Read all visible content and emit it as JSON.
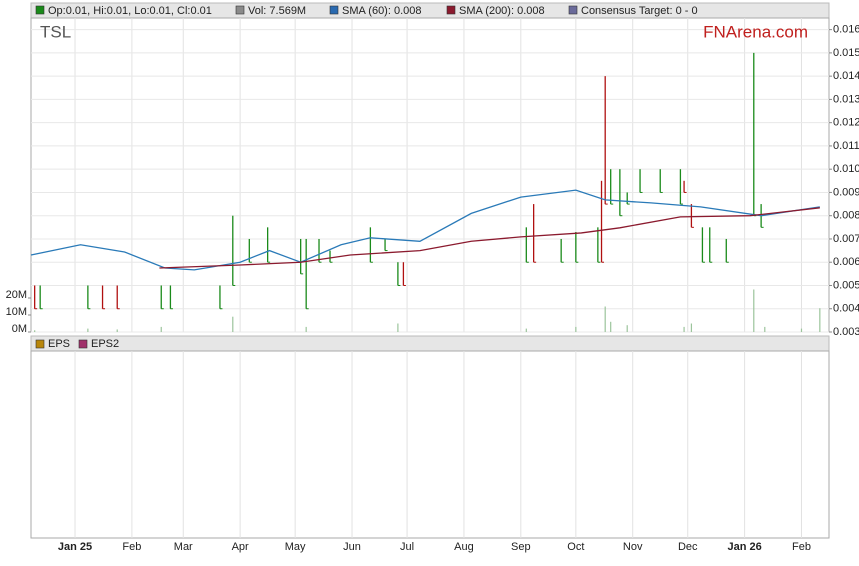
{
  "legend": [
    {
      "label": "Op:0.01, Hi:0.01, Lo:0.01, Cl:0.01",
      "color": "#1a8a1a"
    },
    {
      "label": "Vol: 7.569M",
      "color": "#8a8a8a"
    },
    {
      "label": "SMA (60): 0.008",
      "color": "#2a6ab0"
    },
    {
      "label": "SMA (200): 0.008",
      "color": "#8b1a2e"
    },
    {
      "label": "Consensus Target: 0 - 0",
      "color": "#6a6a9a"
    }
  ],
  "eps_legend": [
    {
      "label": "EPS",
      "color": "#b8860b"
    },
    {
      "label": "EPS2",
      "color": "#a0306a"
    }
  ],
  "chart_data": {
    "type": "stock",
    "ticker": "TSL",
    "watermark": "FNArena.com",
    "xlim": [
      0,
      435
    ],
    "xticks": [
      {
        "value": 24,
        "label": "Jan 25"
      },
      {
        "value": 55,
        "label": "Feb"
      },
      {
        "value": 83,
        "label": "Mar"
      },
      {
        "value": 114,
        "label": "Apr"
      },
      {
        "value": 144,
        "label": "May"
      },
      {
        "value": 175,
        "label": "Jun"
      },
      {
        "value": 205,
        "label": "Jul"
      },
      {
        "value": 236,
        "label": "Aug"
      },
      {
        "value": 267,
        "label": "Sep"
      },
      {
        "value": 297,
        "label": "Oct"
      },
      {
        "value": 328,
        "label": "Nov"
      },
      {
        "value": 358,
        "label": "Dec"
      },
      {
        "value": 389,
        "label": "Jan 26"
      },
      {
        "value": 420,
        "label": "Feb"
      }
    ],
    "bold_xticks": [
      0,
      12
    ],
    "ylim": [
      0.003,
      0.0165
    ],
    "yticks": [
      0.003,
      0.004,
      0.005,
      0.006,
      0.007,
      0.008,
      0.009,
      {
        "value": 0.01,
        "label": "0.010"
      },
      0.011,
      0.012,
      0.013,
      0.014,
      0.015,
      0.016
    ],
    "grid": true,
    "series": [
      {
        "color": "#2a7ab8",
        "x": [
          0,
          27,
          51,
          73,
          89,
          114,
          130,
          147,
          169,
          185,
          212,
          240,
          267,
          297,
          313,
          338,
          365,
          398,
          430
        ],
        "values": [
          0.00631,
          0.00675,
          0.00644,
          0.00575,
          0.00567,
          0.006,
          0.0065,
          0.006,
          0.00675,
          0.00705,
          0.0069,
          0.0081,
          0.0088,
          0.0091,
          0.00868,
          0.00855,
          0.00838,
          0.008,
          0.00838
        ]
      },
      {
        "color": "#8b1a2e",
        "x": [
          70,
          114,
          147,
          174,
          212,
          240,
          267,
          300,
          321,
          354,
          392,
          430
        ],
        "values": [
          0.00575,
          0.00588,
          0.006,
          0.00631,
          0.0065,
          0.0069,
          0.00709,
          0.00726,
          0.00748,
          0.00795,
          0.008,
          0.00834
        ]
      }
    ],
    "bars": {
      "x": [
        2,
        5,
        31,
        39,
        47,
        71,
        76,
        103,
        110,
        119,
        129,
        147,
        150,
        157,
        163,
        185,
        193,
        200,
        203,
        270,
        274,
        289,
        297,
        309,
        311,
        313,
        316,
        321,
        325,
        332,
        343,
        354,
        356,
        360,
        366,
        370,
        379,
        394,
        398
      ],
      "high": [
        0.005,
        0.005,
        0.005,
        0.005,
        0.005,
        0.005,
        0.005,
        0.005,
        0.008,
        0.007,
        0.0075,
        0.007,
        0.007,
        0.007,
        0.0065,
        0.0075,
        0.007,
        0.006,
        0.006,
        0.0075,
        0.0085,
        0.007,
        0.0073,
        0.0075,
        0.0095,
        0.014,
        0.01,
        0.01,
        0.009,
        0.01,
        0.01,
        0.01,
        0.0095,
        0.0085,
        0.0075,
        0.0075,
        0.007,
        0.015,
        0.0085
      ],
      "low": [
        0.004,
        0.004,
        0.004,
        0.004,
        0.004,
        0.004,
        0.004,
        0.004,
        0.005,
        0.006,
        0.006,
        0.0055,
        0.004,
        0.006,
        0.006,
        0.006,
        0.0065,
        0.005,
        0.005,
        0.006,
        0.006,
        0.006,
        0.006,
        0.006,
        0.006,
        0.0085,
        0.0085,
        0.008,
        0.0085,
        0.009,
        0.009,
        0.0085,
        0.009,
        0.0075,
        0.006,
        0.006,
        0.006,
        0.008,
        0.0075
      ],
      "color": [
        "#b01010",
        "#1a8a1a",
        "#1a8a1a",
        "#b01010",
        "#b01010",
        "#1a8a1a",
        "#1a8a1a",
        "#1a8a1a",
        "#1a8a1a",
        "#1a8a1a",
        "#1a8a1a",
        "#1a8a1a",
        "#1a8a1a",
        "#1a8a1a",
        "#1a8a1a",
        "#1a8a1a",
        "#1a8a1a",
        "#1a8a1a",
        "#b01010",
        "#1a8a1a",
        "#b01010",
        "#1a8a1a",
        "#1a8a1a",
        "#1a8a1a",
        "#b01010",
        "#b01010",
        "#1a8a1a",
        "#1a8a1a",
        "#1a8a1a",
        "#1a8a1a",
        "#1a8a1a",
        "#1a8a1a",
        "#b01010",
        "#b01010",
        "#1a8a1a",
        "#1a8a1a",
        "#1a8a1a",
        "#1a8a1a",
        "#1a8a1a"
      ]
    },
    "volume": {
      "color": "#9cc49c",
      "ylim": [
        0,
        40
      ],
      "yticks": [
        {
          "value": 0,
          "label": "0M"
        },
        {
          "value": 10,
          "label": "10M"
        },
        {
          "value": 20,
          "label": "20M"
        }
      ],
      "x": [
        2,
        31,
        47,
        71,
        110,
        150,
        200,
        270,
        297,
        313,
        316,
        325,
        356,
        360,
        394,
        400,
        420,
        430
      ],
      "values": [
        1,
        2,
        1.5,
        3,
        9,
        3,
        5,
        2,
        3,
        15,
        6,
        4,
        3,
        5,
        25,
        3,
        2,
        14
      ]
    }
  }
}
